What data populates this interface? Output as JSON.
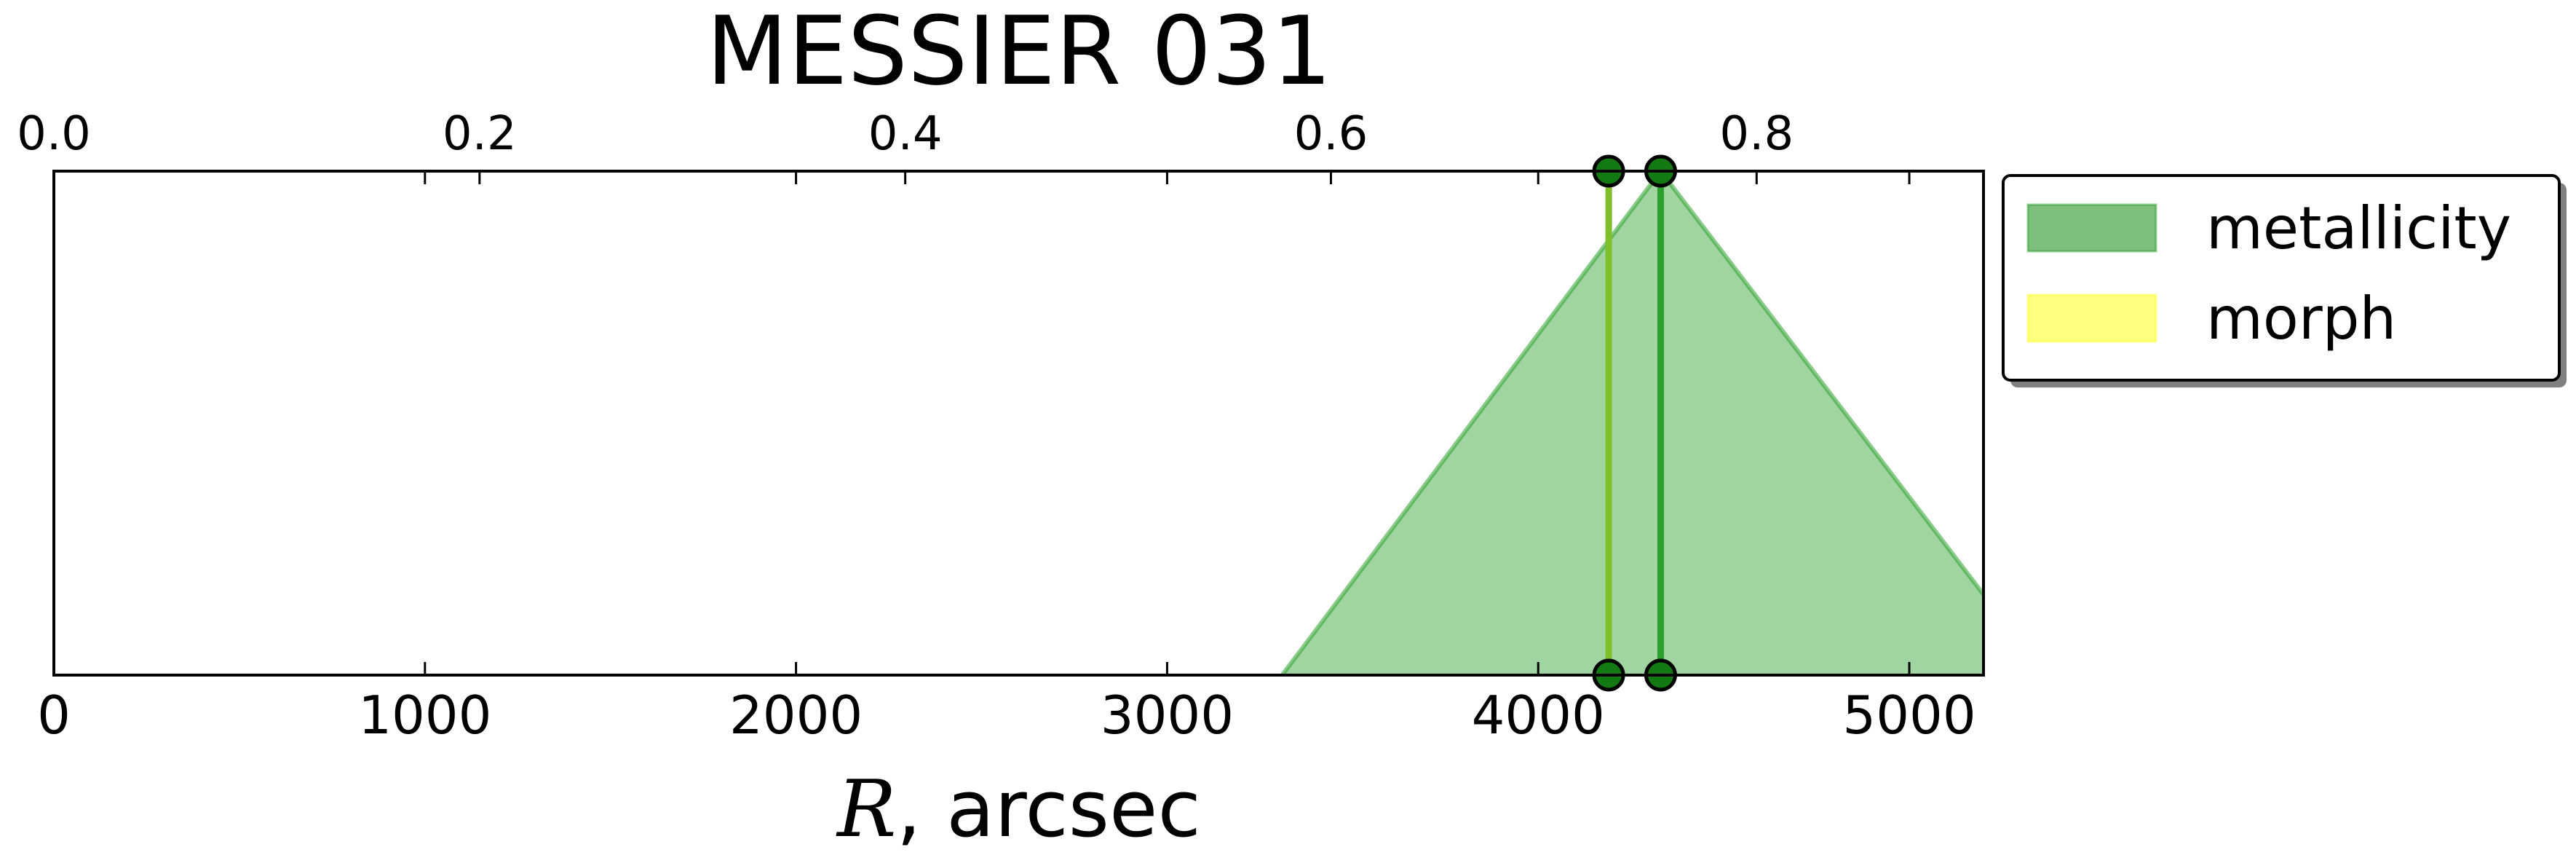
{
  "chart_data": {
    "type": "area",
    "title": "MESSIER 031",
    "xlabel_symbol": "R",
    "xlabel_rest": ", arcsec",
    "xlim": [
      0,
      5200
    ],
    "xticks": [
      0,
      1000,
      2000,
      3000,
      4000,
      5000
    ],
    "xtick_labels": [
      "0",
      "1000",
      "2000",
      "3000",
      "4000",
      "5000"
    ],
    "top_axis": {
      "xlim": [
        0,
        0.9066
      ],
      "ticks": [
        0.0,
        0.2,
        0.4,
        0.6,
        0.8
      ],
      "tick_labels": [
        "0.0",
        "0.2",
        "0.4",
        "0.6",
        "0.8"
      ]
    },
    "ylim": [
      0,
      1
    ],
    "yticks_visible": false,
    "grid": false,
    "series": [
      {
        "name": "metallicity",
        "color": "#2ca02c",
        "fill_alpha": 0.45,
        "x": [
          3310,
          4330,
          5200
        ],
        "y": [
          0,
          1,
          0.16
        ]
      },
      {
        "name": "morph",
        "color": "#ffff33",
        "fill_alpha": 0.6,
        "x": [],
        "y": []
      }
    ],
    "markers": [
      {
        "x": 4190,
        "color": "#7fbf2a"
      },
      {
        "x": 4330,
        "color": "#2ca02c"
      }
    ],
    "legend": {
      "placement": "outside-right-top",
      "entries": [
        "metallicity",
        "morph"
      ],
      "colors": [
        "#7ebf7e",
        "#ffff80"
      ]
    }
  }
}
